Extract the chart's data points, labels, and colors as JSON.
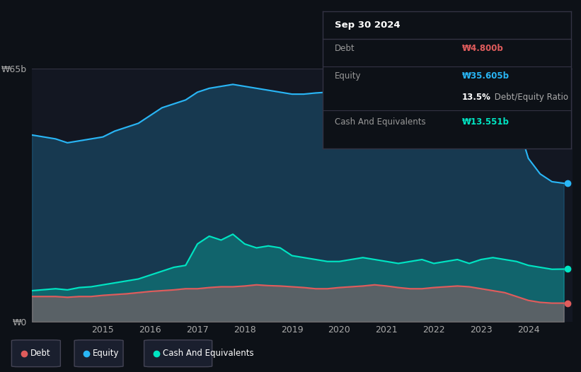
{
  "background_color": "#0d1117",
  "plot_bg_color": "#131722",
  "ylabel_text": "₩65b",
  "ylabel0_text": "₩0",
  "x_ticks": [
    2015,
    2016,
    2017,
    2018,
    2019,
    2020,
    2021,
    2022,
    2023,
    2024
  ],
  "tooltip_title": "Sep 30 2024",
  "tooltip_debt_label": "Debt",
  "tooltip_debt_value": "₩4.800b",
  "tooltip_equity_label": "Equity",
  "tooltip_equity_value": "₩35.605b",
  "tooltip_ratio_bold": "13.5%",
  "tooltip_ratio_rest": " Debt/Equity Ratio",
  "tooltip_cash_label": "Cash And Equivalents",
  "tooltip_cash_value": "₩13.551b",
  "debt_color": "#e05c5c",
  "equity_color": "#29b6f6",
  "cash_color": "#00e5c3",
  "separator_color": "#333344",
  "ymax": 65,
  "equity_data": [
    [
      2013.5,
      48
    ],
    [
      2014.0,
      47
    ],
    [
      2014.25,
      46
    ],
    [
      2014.5,
      46.5
    ],
    [
      2014.75,
      47
    ],
    [
      2015.0,
      47.5
    ],
    [
      2015.25,
      49
    ],
    [
      2015.5,
      50
    ],
    [
      2015.75,
      51
    ],
    [
      2016.0,
      53
    ],
    [
      2016.25,
      55
    ],
    [
      2016.5,
      56
    ],
    [
      2016.75,
      57
    ],
    [
      2017.0,
      59
    ],
    [
      2017.25,
      60
    ],
    [
      2017.5,
      60.5
    ],
    [
      2017.75,
      61
    ],
    [
      2018.0,
      60.5
    ],
    [
      2018.25,
      60
    ],
    [
      2018.5,
      59.5
    ],
    [
      2018.75,
      59
    ],
    [
      2019.0,
      58.5
    ],
    [
      2019.25,
      58.5
    ],
    [
      2019.5,
      58.8
    ],
    [
      2019.75,
      59
    ],
    [
      2020.0,
      58.5
    ],
    [
      2020.25,
      58.8
    ],
    [
      2020.5,
      59
    ],
    [
      2020.75,
      59.2
    ],
    [
      2021.0,
      59
    ],
    [
      2021.25,
      58.5
    ],
    [
      2021.5,
      58.8
    ],
    [
      2021.75,
      59
    ],
    [
      2022.0,
      58
    ],
    [
      2022.25,
      57.5
    ],
    [
      2022.5,
      57
    ],
    [
      2022.75,
      56.5
    ],
    [
      2023.0,
      56
    ],
    [
      2023.25,
      55
    ],
    [
      2023.5,
      54
    ],
    [
      2023.75,
      52
    ],
    [
      2024.0,
      42
    ],
    [
      2024.25,
      38
    ],
    [
      2024.5,
      36
    ],
    [
      2024.75,
      35.6
    ]
  ],
  "cash_data": [
    [
      2013.5,
      8
    ],
    [
      2014.0,
      8.5
    ],
    [
      2014.25,
      8.2
    ],
    [
      2014.5,
      8.8
    ],
    [
      2014.75,
      9
    ],
    [
      2015.0,
      9.5
    ],
    [
      2015.25,
      10
    ],
    [
      2015.5,
      10.5
    ],
    [
      2015.75,
      11
    ],
    [
      2016.0,
      12
    ],
    [
      2016.25,
      13
    ],
    [
      2016.5,
      14
    ],
    [
      2016.75,
      14.5
    ],
    [
      2017.0,
      20
    ],
    [
      2017.25,
      22
    ],
    [
      2017.5,
      21
    ],
    [
      2017.75,
      22.5
    ],
    [
      2018.0,
      20
    ],
    [
      2018.25,
      19
    ],
    [
      2018.5,
      19.5
    ],
    [
      2018.75,
      19
    ],
    [
      2019.0,
      17
    ],
    [
      2019.25,
      16.5
    ],
    [
      2019.5,
      16
    ],
    [
      2019.75,
      15.5
    ],
    [
      2020.0,
      15.5
    ],
    [
      2020.25,
      16
    ],
    [
      2020.5,
      16.5
    ],
    [
      2020.75,
      16
    ],
    [
      2021.0,
      15.5
    ],
    [
      2021.25,
      15
    ],
    [
      2021.5,
      15.5
    ],
    [
      2021.75,
      16
    ],
    [
      2022.0,
      15
    ],
    [
      2022.25,
      15.5
    ],
    [
      2022.5,
      16
    ],
    [
      2022.75,
      15
    ],
    [
      2023.0,
      16
    ],
    [
      2023.25,
      16.5
    ],
    [
      2023.5,
      16
    ],
    [
      2023.75,
      15.5
    ],
    [
      2024.0,
      14.5
    ],
    [
      2024.25,
      14
    ],
    [
      2024.5,
      13.5
    ],
    [
      2024.75,
      13.55
    ]
  ],
  "debt_data": [
    [
      2013.5,
      6.5
    ],
    [
      2014.0,
      6.5
    ],
    [
      2014.25,
      6.3
    ],
    [
      2014.5,
      6.5
    ],
    [
      2014.75,
      6.5
    ],
    [
      2015.0,
      6.8
    ],
    [
      2015.25,
      7
    ],
    [
      2015.5,
      7.2
    ],
    [
      2015.75,
      7.5
    ],
    [
      2016.0,
      7.8
    ],
    [
      2016.25,
      8
    ],
    [
      2016.5,
      8.2
    ],
    [
      2016.75,
      8.5
    ],
    [
      2017.0,
      8.5
    ],
    [
      2017.25,
      8.8
    ],
    [
      2017.5,
      9
    ],
    [
      2017.75,
      9
    ],
    [
      2018.0,
      9.2
    ],
    [
      2018.25,
      9.5
    ],
    [
      2018.5,
      9.3
    ],
    [
      2018.75,
      9.2
    ],
    [
      2019.0,
      9.0
    ],
    [
      2019.25,
      8.8
    ],
    [
      2019.5,
      8.5
    ],
    [
      2019.75,
      8.5
    ],
    [
      2020.0,
      8.8
    ],
    [
      2020.25,
      9.0
    ],
    [
      2020.5,
      9.2
    ],
    [
      2020.75,
      9.5
    ],
    [
      2021.0,
      9.2
    ],
    [
      2021.25,
      8.8
    ],
    [
      2021.5,
      8.5
    ],
    [
      2021.75,
      8.5
    ],
    [
      2022.0,
      8.8
    ],
    [
      2022.25,
      9.0
    ],
    [
      2022.5,
      9.2
    ],
    [
      2022.75,
      9.0
    ],
    [
      2023.0,
      8.5
    ],
    [
      2023.25,
      8.0
    ],
    [
      2023.5,
      7.5
    ],
    [
      2023.75,
      6.5
    ],
    [
      2024.0,
      5.5
    ],
    [
      2024.25,
      5.0
    ],
    [
      2024.5,
      4.8
    ],
    [
      2024.75,
      4.8
    ]
  ]
}
